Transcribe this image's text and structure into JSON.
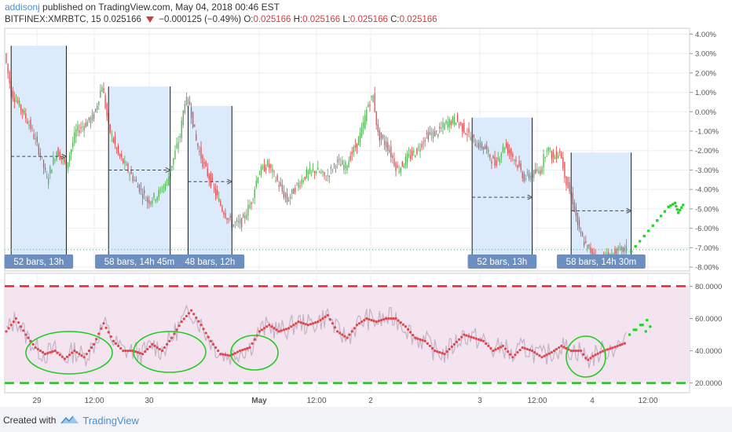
{
  "header": {
    "author": "addisonj",
    "published": "published on TradingView.com, May 04, 2018 00:46 EST"
  },
  "symbol": {
    "ticker": "BITFINEX:XMRBTC, 15",
    "price": "0.025166",
    "change": "−0.000125 (−0.49%)",
    "o_label": "O:",
    "o": "0.025166",
    "h_label": "H:",
    "h": "0.025166",
    "l_label": "L:",
    "l": "0.025166",
    "c_label": "C:",
    "c": "0.025166"
  },
  "footer": {
    "created_with": "Created with",
    "brand": "TradingView"
  },
  "colors": {
    "up": "#4caf50",
    "down": "#e0464b",
    "range_fill": "#dcebfb",
    "range_border": "#1a1a1a",
    "label_box": "#6d8fbf",
    "rsi_band": "#f3e4f0",
    "rsi_line": "#e0464b",
    "overbought": "#d32f2f",
    "oversold": "#22c222",
    "projection": "#21d42c",
    "circle": "#22cc22"
  },
  "chart_data": [
    {
      "type": "candlestick",
      "y_unit": "%",
      "ylim": [
        -8.2,
        4.3
      ],
      "y_ticks": [
        "4.00%",
        "3.00%",
        "2.00%",
        "1.00%",
        "0.00%",
        "-1.00%",
        "-2.00%",
        "-3.00%",
        "-4.00%",
        "-5.00%",
        "-6.00%",
        "-7.00%",
        "-8.00%"
      ],
      "x_ticks": [
        "29",
        "12:00",
        "30",
        "May",
        "12:00",
        "2",
        "3",
        "12:00",
        "4",
        "12:00"
      ],
      "grid": true,
      "price_path": [
        [
          0,
          3.0
        ],
        [
          4,
          1.0
        ],
        [
          10,
          0.2
        ],
        [
          16,
          -0.8
        ],
        [
          22,
          -2.2
        ],
        [
          26,
          -3.5
        ],
        [
          32,
          -2.0
        ],
        [
          38,
          -2.8
        ],
        [
          44,
          -1.0
        ],
        [
          50,
          -0.6
        ],
        [
          55,
          -0.2
        ],
        [
          60,
          1.4
        ],
        [
          64,
          -0.8
        ],
        [
          70,
          -2.2
        ],
        [
          76,
          -3.0
        ],
        [
          82,
          -3.8
        ],
        [
          88,
          -4.6
        ],
        [
          94,
          -4.3
        ],
        [
          100,
          -3.6
        ],
        [
          104,
          -2.4
        ],
        [
          108,
          -1.2
        ],
        [
          111,
          0.6
        ],
        [
          114,
          0.4
        ],
        [
          118,
          -1.5
        ],
        [
          122,
          -2.6
        ],
        [
          128,
          -3.8
        ],
        [
          134,
          -5.0
        ],
        [
          140,
          -5.8
        ],
        [
          146,
          -5.7
        ],
        [
          152,
          -4.6
        ],
        [
          156,
          -3.2
        ],
        [
          162,
          -2.7
        ],
        [
          168,
          -3.6
        ],
        [
          174,
          -4.6
        ],
        [
          180,
          -3.8
        ],
        [
          186,
          -3.2
        ],
        [
          192,
          -3.0
        ],
        [
          198,
          -3.4
        ],
        [
          204,
          -2.6
        ],
        [
          210,
          -2.8
        ],
        [
          216,
          -1.8
        ],
        [
          220,
          -1.0
        ],
        [
          224,
          0.4
        ],
        [
          227,
          0.8
        ],
        [
          230,
          -1.2
        ],
        [
          236,
          -1.8
        ],
        [
          242,
          -3.0
        ],
        [
          248,
          -2.4
        ],
        [
          254,
          -2.0
        ],
        [
          260,
          -1.2
        ],
        [
          266,
          -1.1
        ],
        [
          272,
          -0.6
        ],
        [
          278,
          -0.4
        ],
        [
          284,
          -1.0
        ],
        [
          290,
          -1.6
        ],
        [
          296,
          -1.9
        ],
        [
          302,
          -2.7
        ],
        [
          308,
          -1.7
        ],
        [
          314,
          -2.4
        ],
        [
          320,
          -3.4
        ],
        [
          326,
          -3.2
        ],
        [
          330,
          -3.0
        ],
        [
          334,
          -1.8
        ],
        [
          338,
          -2.4
        ],
        [
          342,
          -2.0
        ],
        [
          346,
          -3.6
        ],
        [
          350,
          -4.6
        ],
        [
          354,
          -6.2
        ],
        [
          358,
          -6.9
        ],
        [
          362,
          -7.3
        ],
        [
          366,
          -7.6
        ],
        [
          372,
          -7.4
        ],
        [
          378,
          -7.2
        ],
        [
          382,
          -7.1
        ]
      ],
      "date_ranges": [
        {
          "label": "52 bars, 13h",
          "x0": 3,
          "x1": 37,
          "y_top": 3.4,
          "y_mid": -2.3
        },
        {
          "label": "58 bars, 14h 45m",
          "x0": 63,
          "x1": 101,
          "y_top": 1.3,
          "y_mid": -3.0
        },
        {
          "label": "48 bars, 12h",
          "x0": 112,
          "x1": 139,
          "y_top": 0.3,
          "y_mid": -3.6
        },
        {
          "label": "52 bars, 13h",
          "x0": 287,
          "x1": 324,
          "y_top": -0.3,
          "y_mid": -4.4
        },
        {
          "label": "58 bars, 14h 30m",
          "x0": 348,
          "x1": 385,
          "y_top": -2.1,
          "y_mid": -5.1
        }
      ],
      "current_level": -7.1,
      "projection": [
        [
          385,
          -7.2
        ],
        [
          393,
          -6.4
        ],
        [
          401,
          -5.6
        ],
        [
          408,
          -4.9
        ],
        [
          412,
          -4.7
        ],
        [
          414,
          -5.2
        ],
        [
          417,
          -4.8
        ]
      ]
    },
    {
      "type": "line",
      "indicator": "RSI",
      "ylim": [
        14,
        88
      ],
      "y_ticks": [
        "80.0000",
        "60.0000",
        "40.0000",
        "20.0000"
      ],
      "levels": {
        "overbought": 80,
        "oversold": 20
      },
      "series": [
        {
          "points": [
            [
              0,
              52
            ],
            [
              6,
              60
            ],
            [
              12,
              50
            ],
            [
              18,
              42
            ],
            [
              24,
              38
            ],
            [
              30,
              40
            ],
            [
              36,
              35
            ],
            [
              42,
              40
            ],
            [
              48,
              36
            ],
            [
              54,
              44
            ],
            [
              60,
              57
            ],
            [
              66,
              46
            ],
            [
              72,
              40
            ],
            [
              78,
              40
            ],
            [
              84,
              38
            ],
            [
              90,
              44
            ],
            [
              96,
              40
            ],
            [
              102,
              48
            ],
            [
              108,
              58
            ],
            [
              114,
              65
            ],
            [
              120,
              56
            ],
            [
              126,
              46
            ],
            [
              132,
              38
            ],
            [
              138,
              37
            ],
            [
              144,
              40
            ],
            [
              150,
              42
            ],
            [
              156,
              52
            ],
            [
              162,
              56
            ],
            [
              168,
              52
            ],
            [
              174,
              54
            ],
            [
              180,
              58
            ],
            [
              186,
              56
            ],
            [
              192,
              58
            ],
            [
              198,
              62
            ],
            [
              204,
              52
            ],
            [
              210,
              48
            ],
            [
              216,
              56
            ],
            [
              222,
              60
            ],
            [
              228,
              58
            ],
            [
              234,
              60
            ],
            [
              240,
              60
            ],
            [
              246,
              55
            ],
            [
              252,
              48
            ],
            [
              258,
              46
            ],
            [
              264,
              40
            ],
            [
              270,
              38
            ],
            [
              276,
              44
            ],
            [
              282,
              50
            ],
            [
              288,
              48
            ],
            [
              294,
              46
            ],
            [
              300,
              40
            ],
            [
              306,
              43
            ],
            [
              312,
              36
            ],
            [
              318,
              42
            ],
            [
              324,
              40
            ],
            [
              330,
              36
            ],
            [
              336,
              39
            ],
            [
              342,
              43
            ],
            [
              348,
              40
            ],
            [
              354,
              40
            ],
            [
              358,
              34
            ],
            [
              362,
              37
            ],
            [
              368,
              40
            ],
            [
              374,
              42
            ],
            [
              382,
              45
            ]
          ]
        }
      ],
      "projection": [
        [
          384,
          50
        ],
        [
          388,
          53
        ],
        [
          392,
          56
        ],
        [
          394,
          52
        ]
      ]
    }
  ]
}
